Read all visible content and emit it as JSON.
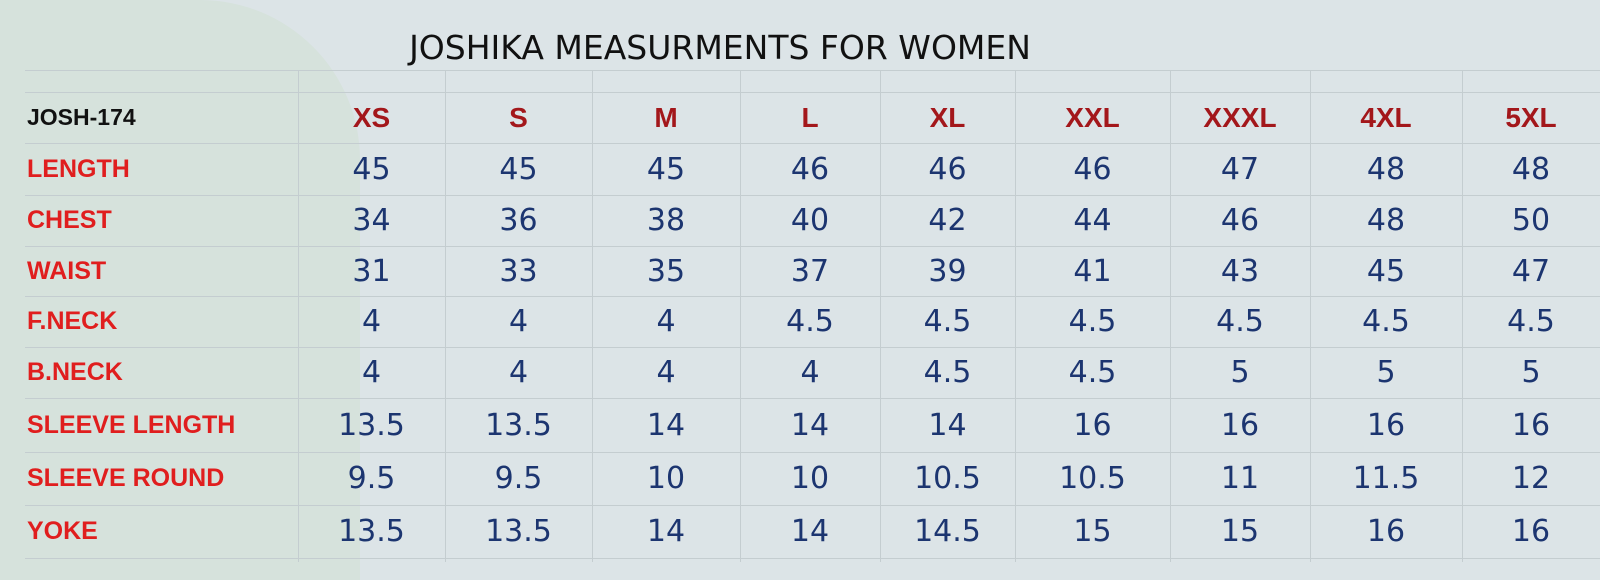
{
  "title": "JOSHIKA MEASURMENTS FOR WOMEN",
  "table": {
    "header": [
      "JOSH-174",
      "XS",
      "S",
      "M",
      "L",
      "XL",
      "XXL",
      "XXXL",
      "4XL",
      "5XL"
    ],
    "rows": [
      [
        "LENGTH",
        45,
        45,
        45,
        46,
        46,
        46,
        47,
        48,
        48
      ],
      [
        "CHEST",
        34,
        36,
        38,
        40,
        42,
        44,
        46,
        48,
        50
      ],
      [
        "WAIST",
        31,
        33,
        35,
        37,
        39,
        41,
        43,
        45,
        47
      ],
      [
        "F.NECK",
        4,
        4,
        4,
        4.5,
        4.5,
        4.5,
        4.5,
        4.5,
        4.5
      ],
      [
        "B.NECK",
        4,
        4,
        4,
        4,
        4.5,
        4.5,
        5,
        5,
        5
      ],
      [
        "SLEEVE LENGTH",
        13.5,
        13.5,
        14,
        14,
        14,
        16,
        16,
        16,
        16
      ],
      [
        "SLEEVE ROUND",
        9.5,
        9.5,
        10,
        10,
        10.5,
        10.5,
        11,
        11.5,
        12
      ],
      [
        "YOKE",
        13.5,
        13.5,
        14,
        14,
        14.5,
        15,
        15,
        16,
        16
      ]
    ]
  }
}
